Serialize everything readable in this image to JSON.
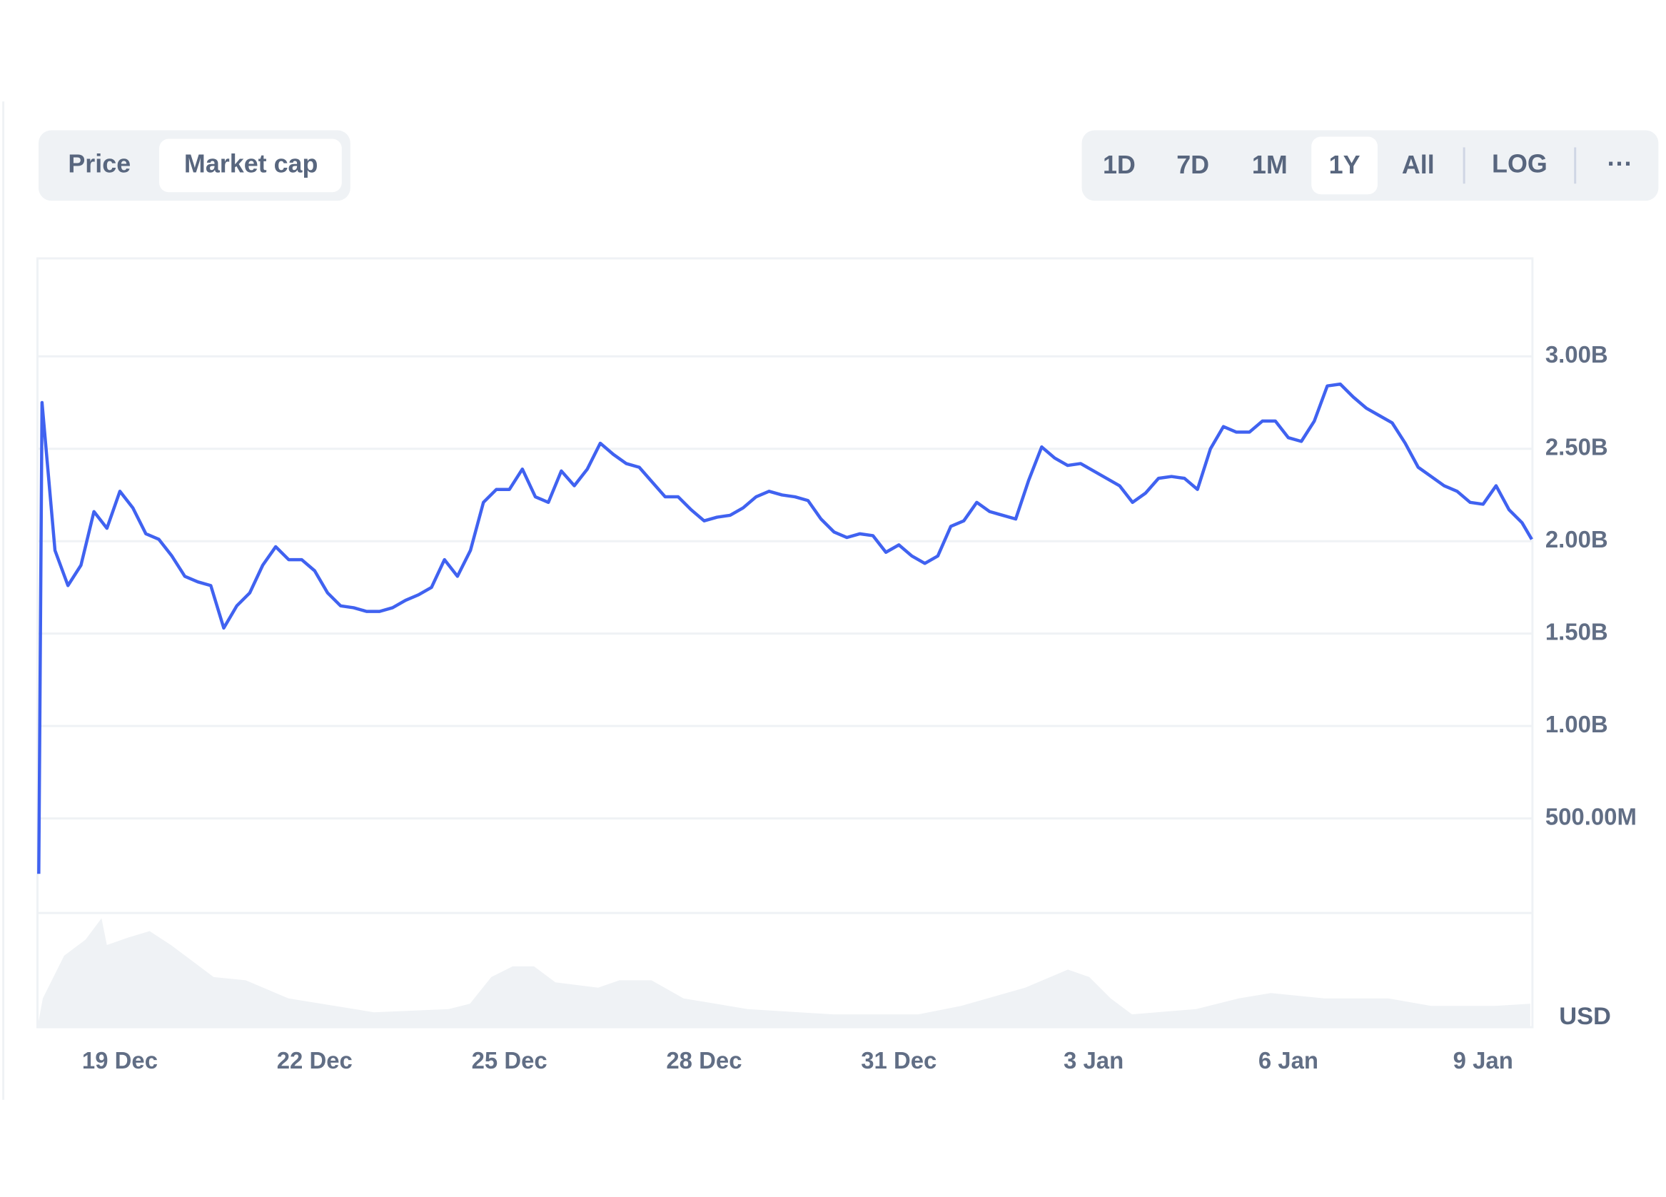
{
  "toggles": [
    "Price",
    "Market cap"
  ],
  "ranges": [
    "1D",
    "7D",
    "1M",
    "1Y",
    "All",
    "LOG",
    "···"
  ],
  "chart_data": {
    "type": "line",
    "currency": "USD",
    "color": "#4062f0",
    "grid": true,
    "x": [
      17.75,
      17.8,
      18.0,
      18.2,
      18.4,
      18.6,
      18.8,
      19.0,
      19.2,
      19.4,
      19.6,
      19.8,
      20.0,
      20.2,
      20.4,
      20.6,
      20.8,
      21.0,
      21.2,
      21.4,
      21.6,
      21.8,
      22.0,
      22.2,
      22.4,
      22.6,
      22.8,
      23.0,
      23.2,
      23.4,
      23.6,
      23.8,
      24.0,
      24.2,
      24.4,
      24.6,
      24.8,
      25.0,
      25.2,
      25.4,
      25.6,
      25.8,
      26.0,
      26.2,
      26.4,
      26.6,
      26.8,
      27.0,
      27.2,
      27.4,
      27.6,
      27.8,
      28.0,
      28.2,
      28.4,
      28.6,
      28.8,
      29.0,
      29.2,
      29.4,
      29.6,
      29.8,
      30.0,
      30.2,
      30.4,
      30.6,
      30.8,
      31.0,
      31.2,
      31.4,
      31.6,
      31.8,
      32.0,
      32.2,
      32.4,
      32.6,
      32.8,
      33.0,
      33.2,
      33.4,
      33.6,
      33.8,
      34.0,
      34.2,
      34.4,
      34.6,
      34.8,
      35.0,
      35.2,
      35.4,
      35.6,
      35.8,
      36.0,
      36.2,
      36.4,
      36.6,
      36.8,
      37.0,
      37.2,
      37.4,
      37.6,
      37.8,
      38.0,
      38.2,
      38.4,
      38.6,
      38.8,
      39.0,
      39.2,
      39.4,
      39.6,
      39.8,
      40.0,
      40.2,
      40.4,
      40.6,
      40.75
    ],
    "values": [
      0.2,
      2.75,
      1.95,
      1.76,
      1.87,
      2.16,
      2.07,
      2.27,
      2.18,
      2.04,
      2.01,
      1.92,
      1.81,
      1.78,
      1.76,
      1.53,
      1.65,
      1.72,
      1.87,
      1.97,
      1.9,
      1.9,
      1.84,
      1.72,
      1.65,
      1.64,
      1.62,
      1.62,
      1.64,
      1.68,
      1.71,
      1.75,
      1.9,
      1.81,
      1.95,
      2.21,
      2.28,
      2.28,
      2.39,
      2.24,
      2.21,
      2.38,
      2.3,
      2.39,
      2.53,
      2.47,
      2.42,
      2.4,
      2.32,
      2.24,
      2.24,
      2.17,
      2.11,
      2.13,
      2.14,
      2.18,
      2.24,
      2.27,
      2.25,
      2.24,
      2.22,
      2.12,
      2.05,
      2.02,
      2.04,
      2.03,
      1.94,
      1.98,
      1.92,
      1.88,
      1.92,
      2.08,
      2.11,
      2.21,
      2.16,
      2.14,
      2.12,
      2.33,
      2.51,
      2.45,
      2.41,
      2.42,
      2.38,
      2.34,
      2.3,
      2.21,
      2.26,
      2.34,
      2.35,
      2.34,
      2.28,
      2.5,
      2.62,
      2.59,
      2.59,
      2.65,
      2.65,
      2.56,
      2.54,
      2.65,
      2.84,
      2.85,
      2.78,
      2.72,
      2.68,
      2.64,
      2.53,
      2.4,
      2.35,
      2.3,
      2.27,
      2.21,
      2.2,
      2.3,
      2.17,
      2.1,
      2.01
    ],
    "xlim": [
      17.73,
      40.76
    ],
    "xticks": [
      {
        "value": 19,
        "label": "19 Dec"
      },
      {
        "value": 22,
        "label": "22 Dec"
      },
      {
        "value": 25,
        "label": "25 Dec"
      },
      {
        "value": 28,
        "label": "28 Dec"
      },
      {
        "value": 31,
        "label": "31 Dec"
      },
      {
        "value": 34,
        "label": "3 Jan"
      },
      {
        "value": 37,
        "label": "6 Jan"
      },
      {
        "value": 40,
        "label": "9 Jan"
      }
    ],
    "ylim": [
      0,
      3.53
    ],
    "yticks": [
      {
        "value": 0.5,
        "label": "500.00M"
      },
      {
        "value": 1,
        "label": "1.00B"
      },
      {
        "value": 1.5,
        "label": "1.50B"
      },
      {
        "value": 2,
        "label": "2.00B"
      },
      {
        "value": 2.5,
        "label": "2.50B"
      },
      {
        "value": 3,
        "label": "3.00B"
      }
    ]
  }
}
